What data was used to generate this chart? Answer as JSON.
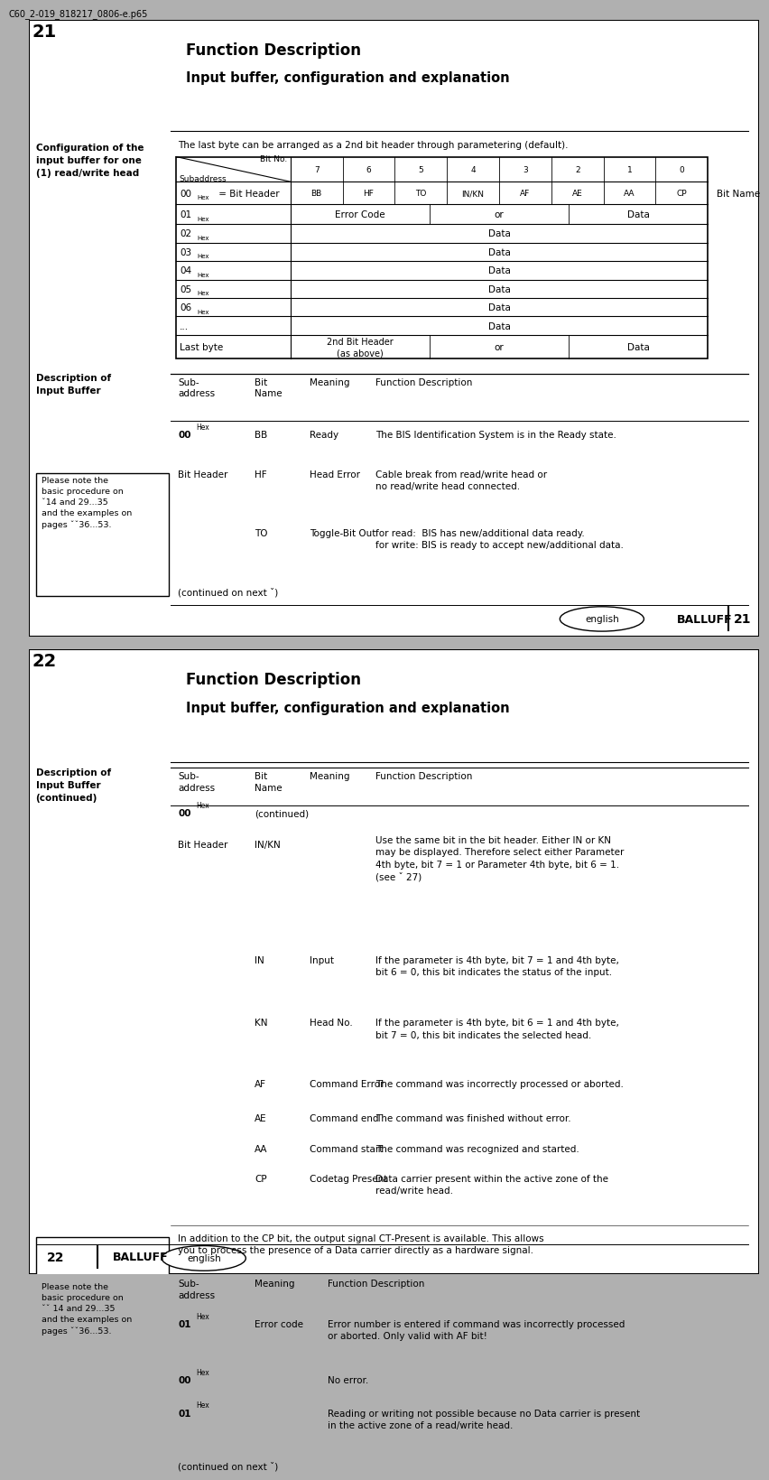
{
  "filename_label": "C60_2-019_818217_0806-e.p65",
  "bg_color": "#b0b0b0",
  "page_color": "#ffffff",
  "page1": {
    "num": "21",
    "title1": "Function Description",
    "title2": "Input buffer, configuration and explanation",
    "sec1_label": "Configuration of the\ninput buffer for one\n(1) read/write head",
    "intro": "The last byte can be arranged as a 2nd bit header through parametering (default).",
    "bit_nos": [
      "7",
      "6",
      "5",
      "4",
      "3",
      "2",
      "1",
      "0"
    ],
    "row0_bits": [
      "BB",
      "HF",
      "TO",
      "IN/KN",
      "AF",
      "AE",
      "AA",
      "CP"
    ],
    "sec2_label": "Description of\nInput Buffer",
    "note": "Please note the\nbasic procedure on\nˇ14 and 29...35\nand the examples on\npages ˇˇ36...53.",
    "footer_eng": "english",
    "footer_bal": "BALLUFF",
    "footer_num": "21"
  },
  "page2": {
    "num": "22",
    "title1": "Function Description",
    "title2": "Input buffer, configuration and explanation",
    "sec_label": "Description of\nInput Buffer\n(continued)",
    "note": "Please note the\nbasic procedure on\nˇˇ 14 and 29...35\nand the examples on\npages ˇˇ36...53.",
    "footer_num": "22",
    "footer_bal": "BALLUFF",
    "footer_eng": "english"
  }
}
